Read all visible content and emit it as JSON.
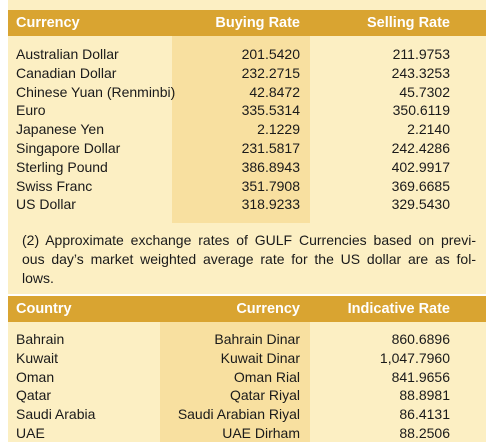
{
  "table1": {
    "header": [
      "Currency",
      "Buying Rate",
      "Selling Rate"
    ],
    "rows": [
      [
        "Australian Dollar",
        "201.5420",
        "211.9753"
      ],
      [
        "Canadian Dollar",
        "232.2715",
        "243.3253"
      ],
      [
        "Chinese Yuan (Renminbi)",
        "42.8472",
        "45.7302"
      ],
      [
        "Euro",
        "335.5314",
        "350.6119"
      ],
      [
        "Japanese Yen",
        "2.1229",
        "2.2140"
      ],
      [
        "Singapore Dollar",
        "231.5817",
        "242.4286"
      ],
      [
        "Sterling Pound",
        "386.8943",
        "402.9917"
      ],
      [
        "Swiss Franc",
        "351.7908",
        "369.6685"
      ],
      [
        "US Dollar",
        "318.9233",
        "329.5430"
      ]
    ]
  },
  "note": {
    "lines": [
      "(2) Approximate exchange rates of GULF Currencies based on previ-",
      "ous day’s market weighted average rate for the US dollar are as fol-",
      "lows."
    ]
  },
  "table2": {
    "header": [
      "Country",
      "Currency",
      "Indicative Rate"
    ],
    "rows": [
      [
        "Bahrain",
        "Bahrain Dinar",
        "860.6896"
      ],
      [
        "Kuwait",
        "Kuwait Dinar",
        "1,047.7960"
      ],
      [
        "Oman",
        "Oman Rial",
        "841.9656"
      ],
      [
        "Qatar",
        "Qatar Riyal",
        "88.8981"
      ],
      [
        "Saudi Arabia",
        "Saudi Arabian Riyal",
        "86.4131"
      ],
      [
        "UAE",
        "UAE Dirham",
        "88.2506"
      ]
    ]
  }
}
